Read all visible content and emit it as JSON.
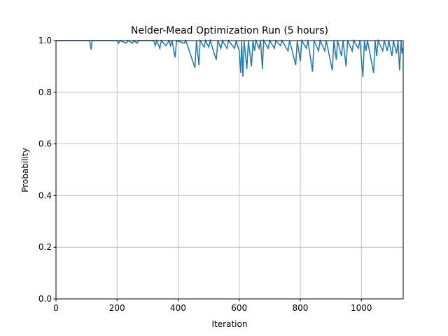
{
  "chart_data": {
    "type": "line",
    "title": "Nelder-Mead Optimization Run (5 hours)",
    "x_label": "Iteration",
    "y_label": "Probability",
    "x": [
      0,
      110,
      115,
      118,
      200,
      205,
      210,
      230,
      235,
      250,
      255,
      265,
      270,
      320,
      325,
      330,
      340,
      345,
      360,
      370,
      375,
      380,
      390,
      395,
      420,
      425,
      455,
      460,
      468,
      472,
      485,
      490,
      500,
      505,
      525,
      530,
      540,
      545,
      560,
      565,
      585,
      590,
      600,
      605,
      608,
      612,
      616,
      625,
      630,
      640,
      645,
      650,
      655,
      665,
      670,
      676,
      680,
      695,
      700,
      715,
      720,
      735,
      740,
      760,
      765,
      785,
      790,
      800,
      805,
      820,
      825,
      840,
      845,
      860,
      865,
      880,
      885,
      905,
      910,
      918,
      922,
      935,
      940,
      950,
      955,
      970,
      975,
      990,
      995,
      1005,
      1010,
      1015,
      1020,
      1040,
      1045,
      1050,
      1055,
      1070,
      1075,
      1085,
      1090,
      1100,
      1105,
      1115,
      1120,
      1125,
      1130,
      1133,
      1135
    ],
    "series": [
      {
        "name": "Probability",
        "color": "#1f77b4",
        "values": [
          1,
          1,
          0.965,
          1,
          1,
          0.99,
          1,
          0.99,
          1,
          0.99,
          1,
          0.99,
          1,
          1,
          0.98,
          1,
          0.97,
          1,
          0.98,
          1,
          0.98,
          1,
          0.935,
          1,
          0.99,
          1,
          0.895,
          1,
          0.905,
          1,
          0.975,
          1,
          0.975,
          1,
          0.925,
          1,
          0.97,
          1,
          0.97,
          1,
          0.97,
          1,
          0.96,
          0.875,
          1,
          0.86,
          1,
          0.89,
          1,
          0.9,
          1,
          0.96,
          1,
          0.97,
          1,
          0.89,
          1,
          0.97,
          1,
          0.97,
          1,
          0.98,
          1,
          0.96,
          1,
          0.905,
          1,
          0.92,
          1,
          0.97,
          1,
          0.88,
          1,
          0.96,
          1,
          0.96,
          1,
          0.885,
          1,
          0.925,
          1,
          0.94,
          1,
          0.9,
          1,
          0.96,
          1,
          0.97,
          1,
          0.86,
          1,
          0.96,
          1,
          0.875,
          1,
          0.94,
          1,
          0.96,
          1,
          0.96,
          1,
          0.94,
          1,
          0.95,
          1,
          0.885,
          1,
          0.95,
          0.97
        ]
      }
    ],
    "xlim": [
      0,
      1137
    ],
    "ylim": [
      0,
      1
    ],
    "xticks": [
      0,
      200,
      400,
      600,
      800,
      1000
    ],
    "yticks": [
      {
        "value": 0,
        "label": "0.0"
      },
      0.2,
      0.4,
      0.6,
      0.8,
      {
        "value": 1,
        "label": "1.0"
      }
    ],
    "grid": true
  }
}
